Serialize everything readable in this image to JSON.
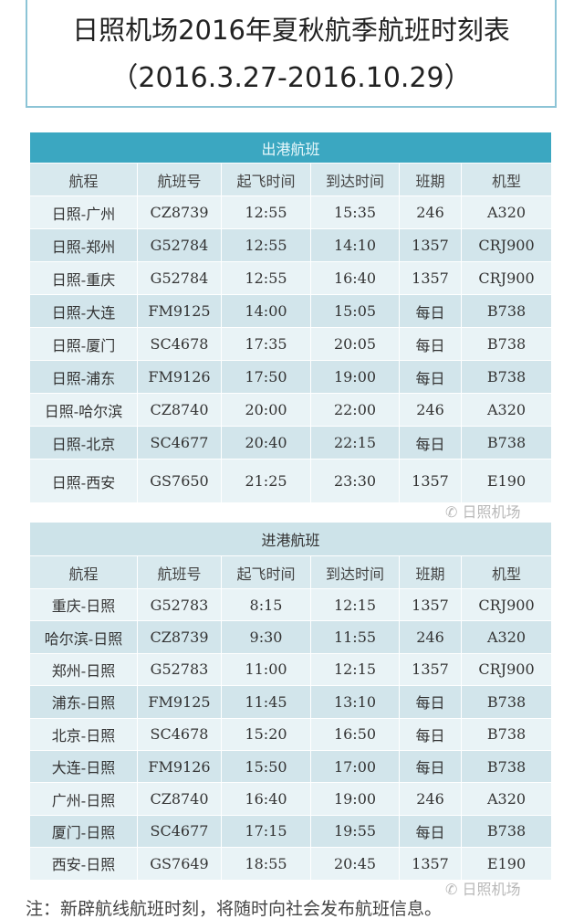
{
  "title": {
    "line1": "日照机场2016年夏秋航季航班时刻表",
    "line2": "（2016.3.27-2016.10.29）"
  },
  "columns": [
    "航程",
    "航班号",
    "起飞时间",
    "到达时间",
    "班期",
    "机型"
  ],
  "departures": {
    "caption": "出港航班",
    "rows": [
      [
        "日照-广州",
        "CZ8739",
        "12:55",
        "15:35",
        "246",
        "A320"
      ],
      [
        "日照-郑州",
        "G52784",
        "12:55",
        "14:10",
        "1357",
        "CRJ900"
      ],
      [
        "日照-重庆",
        "G52784",
        "12:55",
        "16:40",
        "1357",
        "CRJ900"
      ],
      [
        "日照-大连",
        "FM9125",
        "14:00",
        "15:05",
        "每日",
        "B738"
      ],
      [
        "日照-厦门",
        "SC4678",
        "17:35",
        "20:05",
        "每日",
        "B738"
      ],
      [
        "日照-浦东",
        "FM9126",
        "17:50",
        "19:00",
        "每日",
        "B738"
      ],
      [
        "日照-哈尔滨",
        "CZ8740",
        "20:00",
        "22:00",
        "246",
        "A320"
      ],
      [
        "日照-北京",
        "SC4677",
        "20:40",
        "22:15",
        "每日",
        "B738"
      ],
      [
        "日照-西安",
        "GS7650",
        "21:25",
        "23:30",
        "1357",
        "E190"
      ]
    ]
  },
  "arrivals": {
    "caption": "进港航班",
    "rows": [
      [
        "重庆-日照",
        "G52783",
        "8:15",
        "12:15",
        "1357",
        "CRJ900"
      ],
      [
        "哈尔滨-日照",
        "CZ8739",
        "9:30",
        "11:55",
        "246",
        "A320"
      ],
      [
        "郑州-日照",
        "G52783",
        "11:00",
        "12:15",
        "1357",
        "CRJ900"
      ],
      [
        "浦东-日照",
        "FM9125",
        "11:45",
        "13:10",
        "每日",
        "B738"
      ],
      [
        "北京-日照",
        "SC4678",
        "15:20",
        "16:50",
        "每日",
        "B738"
      ],
      [
        "大连-日照",
        "FM9126",
        "15:50",
        "17:00",
        "每日",
        "B738"
      ],
      [
        "广州-日照",
        "CZ8740",
        "16:40",
        "19:00",
        "246",
        "A320"
      ],
      [
        "厦门-日照",
        "SC4677",
        "17:15",
        "19:55",
        "每日",
        "B738"
      ],
      [
        "西安-日照",
        "GS7649",
        "18:55",
        "20:45",
        "1357",
        "E190"
      ]
    ]
  },
  "watermark": "日照机场",
  "note": "注：新辟航线航班时刻，将随时向社会发布航班信息。",
  "colors": {
    "departure_header": "#3ba7c1",
    "arrival_header": "#cde3e9"
  }
}
